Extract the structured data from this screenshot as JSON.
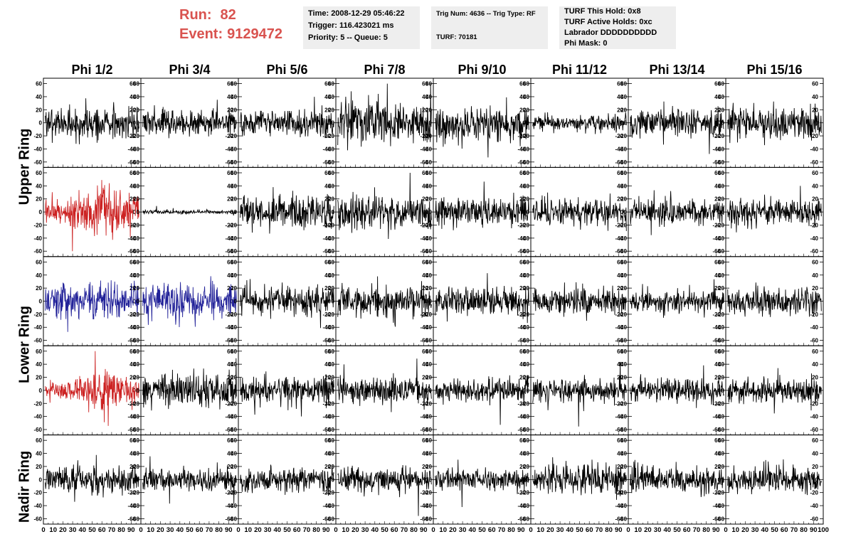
{
  "header": {
    "run_label": "Run:",
    "run_value": "82",
    "event_label": "Event:",
    "event_value": "9129472",
    "info1": [
      "Time: 2008-12-29 05:46:22",
      "Trigger: 116.423021 ms",
      "Priority: 5 -- Queue: 5"
    ],
    "info2": [
      "Trig Num: 4636 -- Trig Type: RF",
      "TURF: 70181"
    ],
    "info3": [
      "TURF This Hold: 0x8",
      "TURF Active Holds: 0xc",
      "Labrador DDDDDDDDDD",
      "Phi Mask: 0"
    ]
  },
  "chart_data": {
    "type": "line",
    "columns": [
      "Phi 1/2",
      "Phi 3/4",
      "Phi 5/6",
      "Phi 7/8",
      "Phi 9/10",
      "Phi 11/12",
      "Phi 13/14",
      "Phi 15/16"
    ],
    "row_groups": [
      "Upper Ring",
      "Lower Ring",
      "Nadir Ring"
    ],
    "xlim": [
      0,
      100
    ],
    "ylim": [
      -65,
      65
    ],
    "y_ticks": [
      -60,
      -40,
      -20,
      0,
      20,
      40,
      60
    ],
    "x_tick_labels": [
      "0",
      "10",
      "20",
      "30",
      "40",
      "50",
      "60",
      "70",
      "80",
      "90",
      "100"
    ],
    "colors": {
      "normal": "#000000",
      "highlight_red": "#cc2222",
      "highlight_blue": "#222299"
    },
    "highlighted_panels": [
      {
        "row": 1,
        "col": 0,
        "color": "red"
      },
      {
        "row": 2,
        "col": 0,
        "color": "blue"
      },
      {
        "row": 2,
        "col": 1,
        "color": "blue"
      },
      {
        "row": 3,
        "col": 0,
        "color": "red"
      }
    ],
    "panel_amplitudes": [
      [
        18,
        14,
        14,
        22,
        18,
        8,
        14,
        18
      ],
      [
        20,
        2,
        18,
        18,
        16,
        14,
        14,
        14
      ],
      [
        18,
        18,
        16,
        16,
        14,
        14,
        12,
        14
      ],
      [
        16,
        18,
        16,
        14,
        12,
        12,
        12,
        14
      ],
      [
        14,
        12,
        14,
        14,
        12,
        16,
        14,
        14
      ]
    ]
  }
}
